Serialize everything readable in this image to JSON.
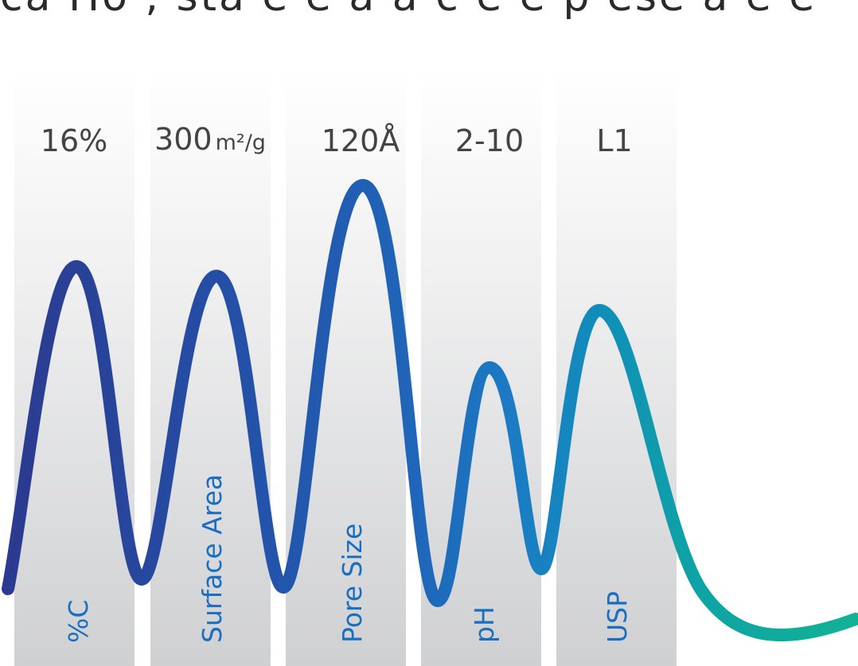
{
  "header": {
    "partial_text": "ca Ho , sta e e a a c e e p ese a e e"
  },
  "columns": [
    {
      "value": "16%",
      "unit": "",
      "label": "%C"
    },
    {
      "value": "300",
      "unit": "m²/g",
      "label": "Surface Area"
    },
    {
      "value": "120Å",
      "unit": "",
      "label": "Pore Size"
    },
    {
      "value": "2-10",
      "unit": "",
      "label": "pH"
    },
    {
      "value": "L1",
      "unit": "",
      "label": "USP"
    }
  ],
  "colors": {
    "column_top": "#ffffff",
    "column_bottom": "#cfd0d2",
    "wave_start": "#2b3a8f",
    "wave_mid": "#1f74c3",
    "wave_end": "#12b296",
    "label_text": "#1a6ec0",
    "value_text": "#444444"
  }
}
